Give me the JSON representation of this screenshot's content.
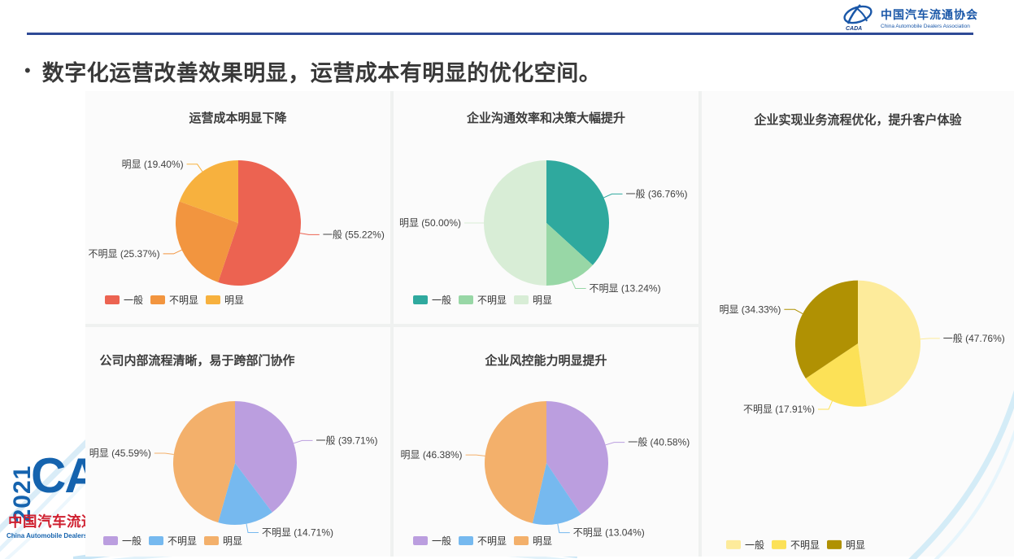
{
  "header": {
    "org_cn": "中国汽车流通协会",
    "org_en": "China Automobile Dealers Association",
    "icon_label": "CADA",
    "brand_color": "#1a57a8",
    "divider_color": "#2e4a96"
  },
  "slide": {
    "bullet": "•",
    "title": "数字化运营改善效果明显，运营成本有明显的优化空间。"
  },
  "footer_logo": {
    "year": "2021",
    "brand": "CADA",
    "org_cn": "中国汽车流通",
    "org_en": "China Automobile Dealers Association"
  },
  "chart_data": [
    {
      "type": "pie",
      "title": "运营成本明显下降",
      "categories": [
        "一般",
        "不明显",
        "明显"
      ],
      "values": [
        55.22,
        25.37,
        19.4
      ],
      "colors": [
        "#ec6351",
        "#f2953f",
        "#f7b13e"
      ],
      "label_format": "{name} ({value}%)",
      "legend_position": "bottom-left",
      "start_angle": "top-clockwise"
    },
    {
      "type": "pie",
      "title": "企业沟通效率和决策大幅提升",
      "categories": [
        "一般",
        "不明显",
        "明显"
      ],
      "values": [
        36.76,
        13.24,
        50.0
      ],
      "colors": [
        "#2fa99e",
        "#98d7a6",
        "#d8edd6"
      ],
      "label_format": "{name} ({value}%)",
      "legend_position": "bottom-left",
      "start_angle": "top-clockwise"
    },
    {
      "type": "pie",
      "title": "企业实现业务流程优化，提升客户体验",
      "categories": [
        "一般",
        "不明显",
        "明显"
      ],
      "values": [
        47.76,
        17.91,
        34.33
      ],
      "colors": [
        "#fdeb9b",
        "#fce157",
        "#b09103"
      ],
      "label_format": "{name} ({value}%)",
      "legend_position": "bottom-left",
      "start_angle": "top-clockwise"
    },
    {
      "type": "pie",
      "title": "公司内部流程清晰，易于跨部门协作",
      "categories": [
        "一般",
        "不明显",
        "明显"
      ],
      "values": [
        39.71,
        14.71,
        45.59
      ],
      "colors": [
        "#bb9edf",
        "#76b9ef",
        "#f3b06b"
      ],
      "label_format": "{name} ({value}%)",
      "legend_position": "bottom-left",
      "start_angle": "top-clockwise"
    },
    {
      "type": "pie",
      "title": "企业风控能力明显提升",
      "categories": [
        "一般",
        "不明显",
        "明显"
      ],
      "values": [
        40.58,
        13.04,
        46.38
      ],
      "colors": [
        "#bb9edf",
        "#76b9ef",
        "#f3b06b"
      ],
      "label_format": "{name} ({value}%)",
      "legend_position": "bottom-left",
      "start_angle": "top-clockwise"
    }
  ]
}
